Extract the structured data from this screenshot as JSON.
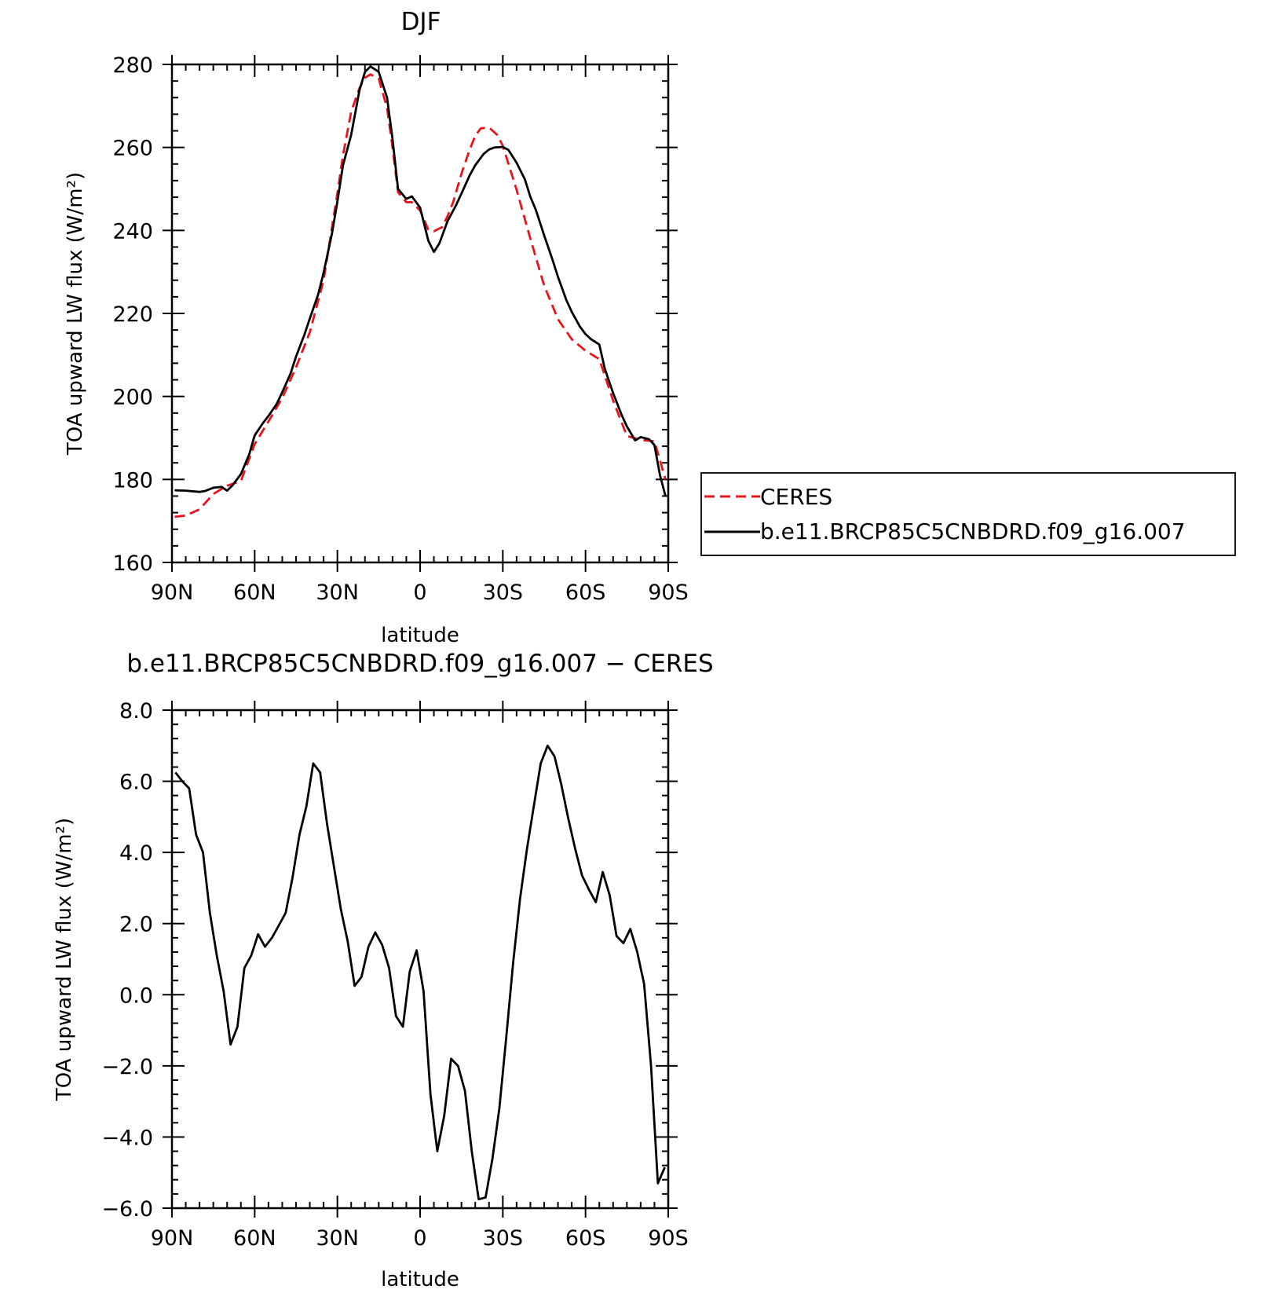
{
  "chart_data": [
    {
      "type": "line",
      "title": "DJF",
      "xlabel": "latitude",
      "ylabel": "TOA upward LW flux (W/m²)",
      "xlim": [
        90,
        -90
      ],
      "ylim": [
        160,
        280
      ],
      "x_ticks": [
        {
          "value": 90,
          "label": "90N"
        },
        {
          "value": 60,
          "label": "60N"
        },
        {
          "value": 30,
          "label": "30N"
        },
        {
          "value": 0,
          "label": "0"
        },
        {
          "value": -30,
          "label": "30S"
        },
        {
          "value": -60,
          "label": "60S"
        },
        {
          "value": -90,
          "label": "90S"
        }
      ],
      "y_ticks": [
        {
          "value": 160,
          "label": "160"
        },
        {
          "value": 180,
          "label": "180"
        },
        {
          "value": 200,
          "label": "200"
        },
        {
          "value": 220,
          "label": "220"
        },
        {
          "value": 240,
          "label": "240"
        },
        {
          "value": 260,
          "label": "260"
        },
        {
          "value": 280,
          "label": "280"
        }
      ],
      "legend_position": "right",
      "series": [
        {
          "name": "CERES",
          "color": "#e8141a",
          "dash": true,
          "x": [
            89,
            85,
            80,
            75,
            70,
            65,
            60,
            55,
            50,
            45,
            40,
            35,
            30,
            28,
            25,
            22,
            20,
            18,
            15,
            12,
            10,
            8,
            5,
            3,
            0,
            -3,
            -5,
            -8,
            -10,
            -12,
            -15,
            -18,
            -20,
            -22,
            -25,
            -28,
            -30,
            -35,
            -40,
            -45,
            -50,
            -55,
            -60,
            -65,
            -70,
            -75,
            -80,
            -85,
            -89
          ],
          "y": [
            171,
            171.3,
            172.8,
            176.5,
            178.5,
            179.6,
            188.5,
            194,
            199.6,
            207,
            215.5,
            228,
            249,
            258,
            268.6,
            274.3,
            276.8,
            277.6,
            276.6,
            269.5,
            260,
            249.2,
            246.8,
            246.8,
            244.8,
            240.2,
            239.8,
            240.8,
            243.5,
            246.8,
            253.7,
            259.5,
            262.8,
            264.6,
            264.8,
            263,
            260.4,
            249.8,
            238,
            226.7,
            218.6,
            213.8,
            211,
            209,
            199,
            190.5,
            189.5,
            189.2,
            180
          ]
        },
        {
          "name": "b.e11.BRCP85C5CNBDRD.f09_g16.007",
          "color": "#000000",
          "dash": false,
          "x": [
            89,
            85,
            80,
            78,
            75,
            72,
            70,
            68,
            65,
            62,
            60,
            57,
            55,
            52,
            50,
            47,
            45,
            42,
            40,
            37,
            35,
            32,
            30,
            28,
            25,
            22,
            20,
            18,
            15,
            12,
            10,
            8,
            5,
            3,
            0,
            -3,
            -5,
            -7,
            -10,
            -13,
            -15,
            -18,
            -20,
            -23,
            -25,
            -27,
            -30,
            -32,
            -35,
            -38,
            -40,
            -42,
            -45,
            -48,
            -50,
            -53,
            -55,
            -58,
            -60,
            -62,
            -65,
            -67,
            -70,
            -73,
            -75,
            -78,
            -80,
            -83,
            -85,
            -87,
            -89
          ],
          "y": [
            177.4,
            177.3,
            177,
            177.2,
            178,
            178.2,
            177.3,
            178.6,
            181.3,
            186,
            190.6,
            193.6,
            195.3,
            198.2,
            201,
            205.5,
            209.6,
            214.8,
            218.8,
            224.5,
            229.8,
            239.1,
            247,
            255.6,
            263,
            273.8,
            278.2,
            279.5,
            278.2,
            272,
            262,
            250,
            247.6,
            248.2,
            245.5,
            237.5,
            234.8,
            236.9,
            242.3,
            246,
            248.9,
            253.3,
            255.7,
            258.4,
            259.5,
            260,
            260.1,
            259.4,
            256.3,
            252.3,
            248.1,
            244.9,
            238.8,
            233,
            228.8,
            223.3,
            220.4,
            216.8,
            215,
            213.8,
            212.5,
            206.7,
            200.8,
            195.7,
            192.8,
            189.4,
            190.2,
            189.7,
            188.3,
            181,
            176
          ]
        }
      ]
    },
    {
      "type": "line",
      "title": "b.e11.BRCP85C5CNBDRD.f09_g16.007 − CERES",
      "xlabel": "latitude",
      "ylabel": "TOA upward LW flux (W/m²)",
      "xlim": [
        90,
        -90
      ],
      "ylim": [
        -6,
        8
      ],
      "x_ticks": [
        {
          "value": 90,
          "label": "90N"
        },
        {
          "value": 60,
          "label": "60N"
        },
        {
          "value": 30,
          "label": "30N"
        },
        {
          "value": 0,
          "label": "0"
        },
        {
          "value": -30,
          "label": "30S"
        },
        {
          "value": -60,
          "label": "60S"
        },
        {
          "value": -90,
          "label": "90S"
        }
      ],
      "y_ticks": [
        {
          "value": -6,
          "label": "−6.0"
        },
        {
          "value": -4,
          "label": "−4.0"
        },
        {
          "value": -2,
          "label": "−2.0"
        },
        {
          "value": 0,
          "label": "0.0"
        },
        {
          "value": 2,
          "label": "2.0"
        },
        {
          "value": 4,
          "label": "4.0"
        },
        {
          "value": 6,
          "label": "6.0"
        },
        {
          "value": 8,
          "label": "8.0"
        }
      ],
      "series": [
        {
          "name": "",
          "color": "#000000",
          "dash": false,
          "x": [
            88.75,
            86.25,
            83.75,
            81.25,
            78.75,
            76.25,
            73.75,
            71.25,
            68.75,
            66.25,
            63.75,
            61.25,
            58.75,
            56.25,
            53.75,
            51.25,
            48.75,
            46.25,
            43.75,
            41.25,
            38.75,
            36.25,
            33.75,
            31.25,
            28.75,
            26.25,
            23.75,
            21.25,
            18.75,
            16.25,
            13.75,
            11.25,
            8.75,
            6.25,
            3.75,
            1.25,
            -1.25,
            -3.75,
            -6.25,
            -8.75,
            -11.25,
            -13.75,
            -16.25,
            -18.75,
            -21.25,
            -23.75,
            -26.25,
            -28.75,
            -31.25,
            -33.75,
            -36.25,
            -38.75,
            -41.25,
            -43.75,
            -46.25,
            -48.75,
            -51.25,
            -53.75,
            -56.25,
            -58.75,
            -61.25,
            -63.75,
            -66.25,
            -68.75,
            -71.25,
            -73.75,
            -76.25,
            -78.75,
            -81.25,
            -83.75,
            -86.25,
            -88.75
          ],
          "y": [
            6.25,
            6.0,
            5.8,
            4.5,
            4.0,
            2.3,
            1.1,
            0.1,
            -1.4,
            -0.9,
            0.75,
            1.1,
            1.7,
            1.35,
            1.6,
            1.95,
            2.3,
            3.3,
            4.5,
            5.3,
            6.5,
            6.25,
            4.8,
            3.6,
            2.4,
            1.5,
            0.25,
            0.5,
            1.35,
            1.75,
            1.4,
            0.75,
            -0.6,
            -0.9,
            0.65,
            1.25,
            0.1,
            -2.8,
            -4.4,
            -3.4,
            -1.8,
            -2.0,
            -2.7,
            -4.4,
            -5.75,
            -5.7,
            -4.6,
            -3.2,
            -1.2,
            0.9,
            2.7,
            4.1,
            5.3,
            6.5,
            7.0,
            6.7,
            5.9,
            4.95,
            4.1,
            3.35,
            2.95,
            2.6,
            3.45,
            2.8,
            1.65,
            1.45,
            1.85,
            1.2,
            0.3,
            -2.0,
            -5.3,
            -4.85
          ]
        }
      ]
    }
  ]
}
